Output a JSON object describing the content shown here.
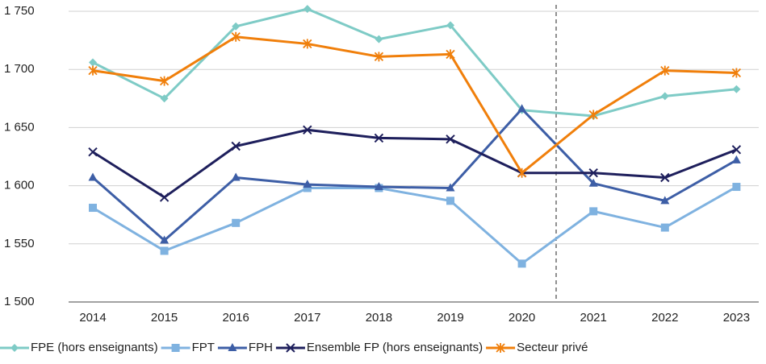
{
  "chart_data": {
    "type": "line",
    "categories": [
      "2014",
      "2015",
      "2016",
      "2017",
      "2018",
      "2019",
      "2020",
      "2021",
      "2022",
      "2023"
    ],
    "series": [
      {
        "name": "FPE (hors enseignants)",
        "color": "#7ecbc6",
        "marker": "diamond",
        "values": [
          1706,
          1675,
          1737,
          1752,
          1726,
          1738,
          1665,
          1660,
          1677,
          1683
        ]
      },
      {
        "name": "FPT",
        "color": "#7fb2e0",
        "marker": "square",
        "values": [
          1581,
          1544,
          1568,
          1598,
          1598,
          1587,
          1533,
          1578,
          1564,
          1599
        ]
      },
      {
        "name": "FPH",
        "color": "#3d5ea6",
        "marker": "triangle",
        "values": [
          1607,
          1553,
          1607,
          1601,
          1599,
          1598,
          1666,
          1602,
          1587,
          1622
        ]
      },
      {
        "name": "Ensemble FP (hors enseignants)",
        "color": "#1e1f5c",
        "marker": "x",
        "values": [
          1629,
          1590,
          1634,
          1648,
          1641,
          1640,
          1611,
          1611,
          1607,
          1631
        ]
      },
      {
        "name": "Secteur privé",
        "color": "#f07f0b",
        "marker": "star",
        "values": [
          1699,
          1690,
          1728,
          1722,
          1711,
          1713,
          1611,
          1661,
          1699,
          1697
        ]
      }
    ],
    "ylim": [
      1500,
      1750
    ],
    "yticks": [
      {
        "value": 1500,
        "label": "1 500"
      },
      {
        "value": 1550,
        "label": "1 550"
      },
      {
        "value": 1600,
        "label": "1 600"
      },
      {
        "value": 1650,
        "label": "1 650"
      },
      {
        "value": 1700,
        "label": "1 700"
      },
      {
        "value": 1750,
        "label": "1 750"
      }
    ],
    "grid": true,
    "legend": "bottom"
  }
}
